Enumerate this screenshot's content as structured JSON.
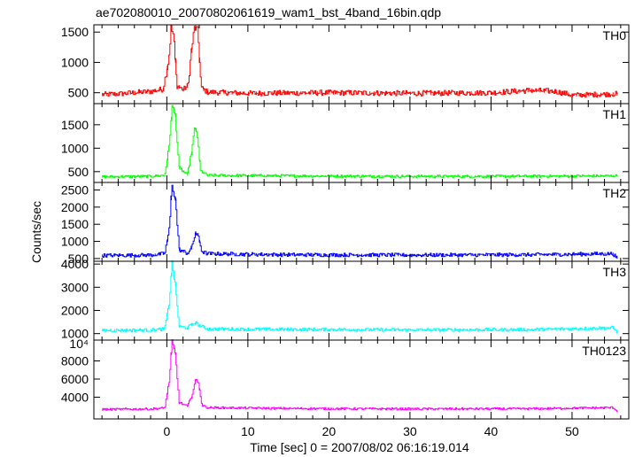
{
  "chart_data": {
    "type": "line",
    "title": "ae702080010_20070802061619_wam1_bst_4band_16bin.qdp",
    "xlabel": "Time [sec] 0 = 2007/08/02 06:16:19.014",
    "ylabel": "Counts/sec",
    "xlim": [
      -9,
      57
    ],
    "x_ticks": [
      0,
      10,
      20,
      30,
      40,
      50
    ],
    "x_tick_labels": [
      "0",
      "10",
      "20",
      "30",
      "40",
      "50"
    ],
    "grid": false,
    "panels": [
      {
        "name": "TH0",
        "color": "#ff0000",
        "ylim": [
          320,
          1620
        ],
        "y_ticks": [
          500,
          1000,
          1500
        ],
        "y_tick_labels": [
          "500",
          "1000",
          "1500"
        ],
        "baseline": 480,
        "noise": 45,
        "x": [
          -8,
          -6,
          -4,
          -2,
          -0.5,
          0.2,
          0.5,
          0.8,
          1.2,
          2,
          2.6,
          3.0,
          3.4,
          3.8,
          4.2,
          5,
          10,
          20,
          30,
          40,
          45,
          48,
          50,
          55.5
        ],
        "y": [
          470,
          480,
          500,
          520,
          560,
          1050,
          1560,
          1450,
          620,
          550,
          620,
          1200,
          1590,
          1500,
          580,
          510,
          490,
          500,
          490,
          500,
          540,
          520,
          460,
          480
        ]
      },
      {
        "name": "TH1",
        "color": "#00ff00",
        "ylim": [
          270,
          1950
        ],
        "y_ticks": [
          500,
          1000,
          1500
        ],
        "y_tick_labels": [
          "500",
          "1000",
          "1500"
        ],
        "baseline": 400,
        "noise": 30,
        "x": [
          -8,
          -2,
          -0.3,
          0.3,
          0.6,
          1.0,
          1.5,
          2.5,
          3.0,
          3.4,
          3.7,
          4.1,
          5,
          15,
          30,
          40,
          55.5
        ],
        "y": [
          390,
          400,
          420,
          1100,
          1900,
          1700,
          580,
          430,
          900,
          1420,
          1350,
          520,
          420,
          410,
          400,
          400,
          410
        ]
      },
      {
        "name": "TH2",
        "color": "#0000ff",
        "ylim": [
          420,
          2720
        ],
        "y_ticks": [
          500,
          1000,
          1500,
          2000,
          2500
        ],
        "y_tick_labels": [
          "500",
          "1000",
          "1500",
          "2000",
          "2500"
        ],
        "baseline": 600,
        "noise": 55,
        "x": [
          -8,
          -2,
          -0.3,
          0.3,
          0.6,
          1.0,
          1.5,
          2.5,
          3.0,
          3.5,
          3.9,
          4.3,
          5,
          15,
          30,
          45,
          55,
          55.5
        ],
        "y": [
          590,
          600,
          640,
          1400,
          2700,
          2250,
          760,
          650,
          800,
          1250,
          1100,
          700,
          640,
          610,
          600,
          610,
          640,
          520
        ]
      },
      {
        "name": "TH3",
        "color": "#00ffff",
        "ylim": [
          720,
          4120
        ],
        "y_ticks": [
          1000,
          2000,
          3000,
          4000
        ],
        "y_tick_labels": [
          "1000",
          "2000",
          "3000",
          "4000"
        ],
        "baseline": 1150,
        "noise": 70,
        "x": [
          -8,
          -2,
          -0.3,
          0.3,
          0.6,
          1.0,
          1.5,
          2.5,
          3.5,
          4.0,
          5,
          15,
          30,
          45,
          55,
          55.5
        ],
        "y": [
          1140,
          1150,
          1200,
          2400,
          4100,
          3100,
          1300,
          1250,
          1480,
          1350,
          1200,
          1180,
          1160,
          1170,
          1250,
          1080
        ]
      },
      {
        "name": "TH0123",
        "color": "#ff00ff",
        "ylim": [
          1600,
          10300
        ],
        "y_ticks": [
          4000,
          6000,
          8000
        ],
        "y_tick_labels": [
          "4000",
          "6000",
          "8000"
        ],
        "y_top_label": "10⁴",
        "baseline": 2700,
        "noise": 120,
        "x": [
          -8,
          -2,
          -0.3,
          0.3,
          0.6,
          1.0,
          1.5,
          2.5,
          3.0,
          3.5,
          3.9,
          4.3,
          5,
          15,
          30,
          45,
          55,
          55.5
        ],
        "y": [
          2650,
          2700,
          2800,
          6000,
          10200,
          8800,
          3400,
          3000,
          4000,
          5900,
          5500,
          3100,
          2850,
          2750,
          2700,
          2720,
          2850,
          2500
        ]
      }
    ]
  }
}
